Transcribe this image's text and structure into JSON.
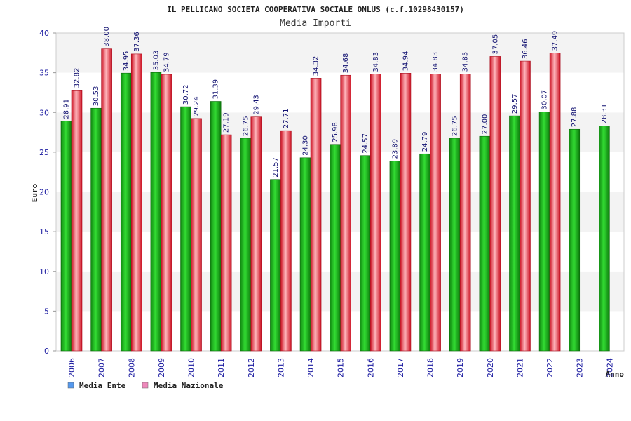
{
  "chart_data": {
    "type": "bar",
    "title": "IL PELLICANO SOCIETA COOPERATIVA SOCIALE ONLUS (c.f.10298430157)",
    "subtitle": "Media Importi",
    "xlabel": "Anno",
    "ylabel": "Euro",
    "ylim": [
      0,
      40
    ],
    "yticks": [
      0,
      5,
      10,
      15,
      20,
      25,
      30,
      35,
      40
    ],
    "grid": "horizontal alternating bands",
    "legend_position": "bottom-left",
    "categories": [
      "2006",
      "2007",
      "2008",
      "2009",
      "2010",
      "2011",
      "2012",
      "2013",
      "2014",
      "2015",
      "2016",
      "2017",
      "2018",
      "2019",
      "2020",
      "2021",
      "2022",
      "2023",
      "2024"
    ],
    "series": [
      {
        "name": "Media Ente",
        "legend_color": "#5599ee",
        "bar_color": "#22bb22",
        "values": [
          28.91,
          30.53,
          34.95,
          35.03,
          30.72,
          31.39,
          26.75,
          21.57,
          24.3,
          25.98,
          24.57,
          23.89,
          24.79,
          26.75,
          27.0,
          29.57,
          30.07,
          27.88,
          28.31
        ],
        "labels": [
          "28.91",
          "30.53",
          "34.95",
          "35.03",
          "30.72",
          "31.39",
          "26.75",
          "21.57",
          "24.30",
          "25.98",
          "24.57",
          "23.89",
          "24.79",
          "26.75",
          "27.00",
          "29.57",
          "30.07",
          "27.88",
          "28.31"
        ]
      },
      {
        "name": "Media Nazionale",
        "legend_color": "#ee88bb",
        "bar_color": "#ee3344",
        "values": [
          32.82,
          38.0,
          37.36,
          34.79,
          29.24,
          27.19,
          29.43,
          27.71,
          34.32,
          34.68,
          34.83,
          34.94,
          34.83,
          34.85,
          37.05,
          36.46,
          37.49,
          null,
          null
        ],
        "labels": [
          "32.82",
          "38.00",
          "37.36",
          "34.79",
          "29.24",
          "27.19",
          "29.43",
          "27.71",
          "34.32",
          "34.68",
          "34.83",
          "34.94",
          "34.83",
          "34.85",
          "37.05",
          "36.46",
          "37.49",
          null,
          null
        ]
      }
    ]
  }
}
